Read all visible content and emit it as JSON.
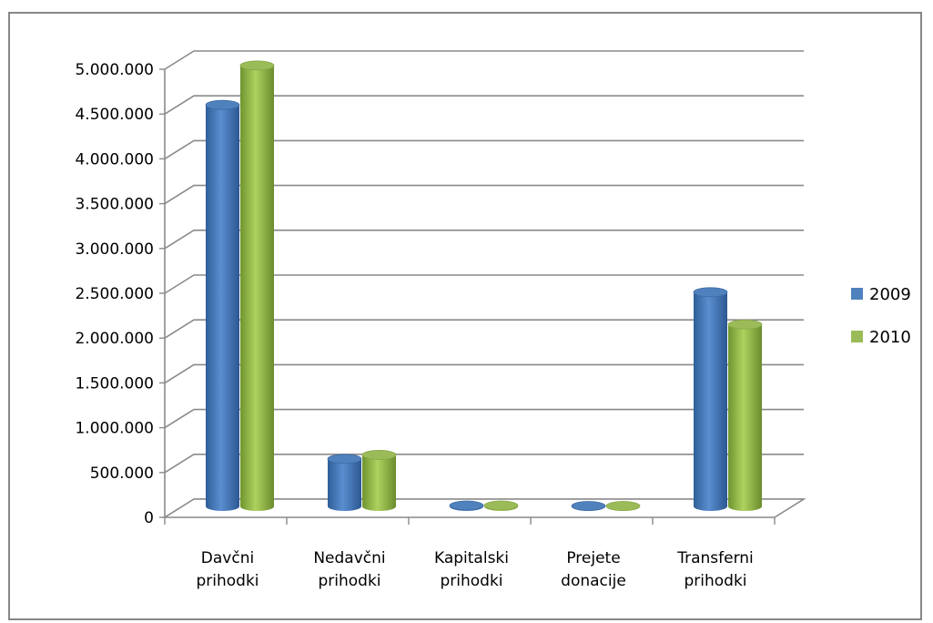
{
  "chart_data": {
    "type": "bar",
    "categories": [
      [
        "Davčni",
        "prihodki"
      ],
      [
        "Nedavčni",
        "prihodki"
      ],
      [
        "Kapitalski",
        "prihodki"
      ],
      [
        "Prejete",
        "donacije"
      ],
      [
        "Transferni",
        "prihodki"
      ]
    ],
    "series": [
      {
        "name": "2009",
        "color": "#4F81BD",
        "values": [
          4480000,
          530000,
          10000,
          5000,
          2390000
        ]
      },
      {
        "name": "2010",
        "color": "#9BBB59",
        "values": [
          4920000,
          575000,
          10000,
          5000,
          2030000
        ]
      }
    ],
    "y_ticks": [
      "0",
      "500.000",
      "1.000.000",
      "1.500.000",
      "2.000.000",
      "2.500.000",
      "3.000.000",
      "3.500.000",
      "4.000.000",
      "4.500.000",
      "5.000.000"
    ],
    "ylim": [
      0,
      5000000
    ],
    "grid": true,
    "legend_position": "right",
    "style": "3d-cylinder"
  }
}
